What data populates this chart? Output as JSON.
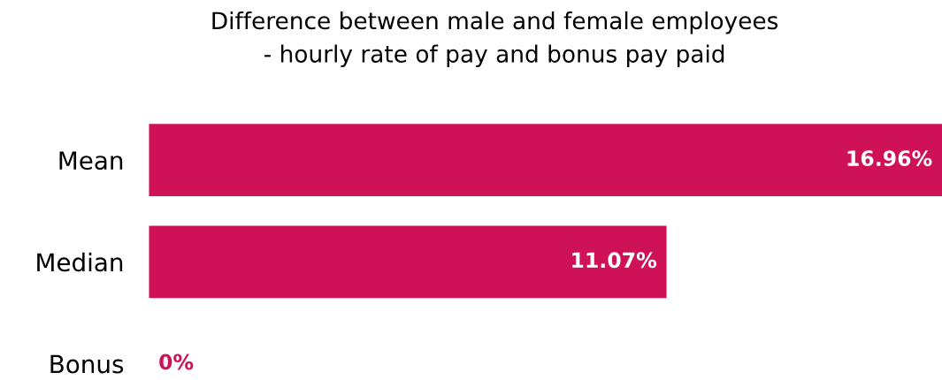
{
  "chart_data": {
    "type": "bar",
    "orientation": "horizontal",
    "title": "Difference between male and female employees\n- hourly rate of pay and bonus pay paid",
    "categories": [
      "Mean",
      "Median",
      "Bonus"
    ],
    "values": [
      16.96,
      11.07,
      0
    ],
    "value_labels": [
      "16.96%",
      "11.07%",
      "0%"
    ],
    "color": "#cf1157",
    "grid": false,
    "legend": false
  }
}
